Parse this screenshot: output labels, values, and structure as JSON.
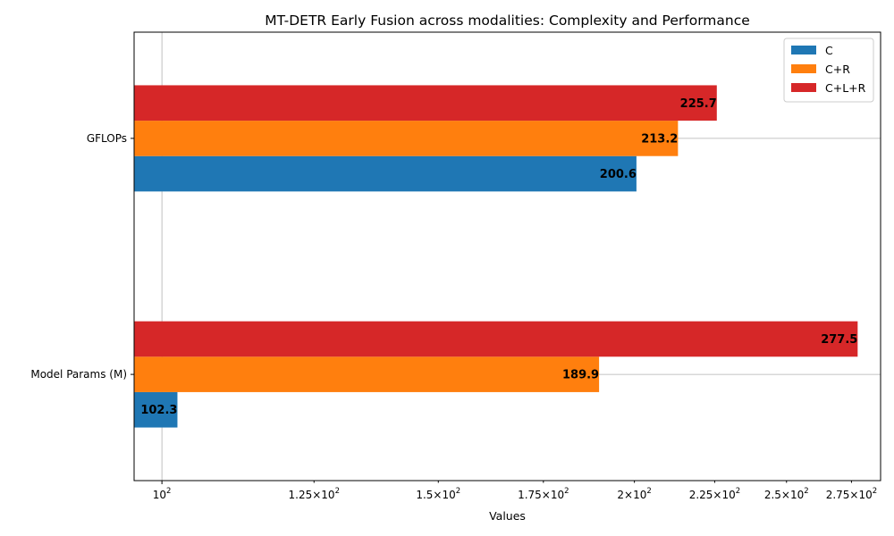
{
  "chart_data": {
    "type": "bar",
    "orientation": "horizontal",
    "title": "MT-DETR Early Fusion across modalities: Complexity and Performance",
    "xlabel": "Values",
    "ylabel": "",
    "x_scale": "log",
    "xlim": [
      96,
      287
    ],
    "x_ticks": [
      {
        "value": 100,
        "mantissa": "",
        "exponent": "2"
      },
      {
        "value": 125,
        "mantissa": "1.25",
        "exponent": "2"
      },
      {
        "value": 150,
        "mantissa": "1.5",
        "exponent": "2"
      },
      {
        "value": 175,
        "mantissa": "1.75",
        "exponent": "2"
      },
      {
        "value": 200,
        "mantissa": "2",
        "exponent": "2"
      },
      {
        "value": 225,
        "mantissa": "2.25",
        "exponent": "2"
      },
      {
        "value": 250,
        "mantissa": "2.5",
        "exponent": "2"
      },
      {
        "value": 275,
        "mantissa": "2.75",
        "exponent": "2"
      }
    ],
    "categories": [
      "GFLOPs",
      "Model Params (M)"
    ],
    "series": [
      {
        "name": "C",
        "color": "#1f77b4",
        "values": [
          200.6,
          102.3
        ]
      },
      {
        "name": "C+R",
        "color": "#ff7f0e",
        "values": [
          213.2,
          189.9
        ]
      },
      {
        "name": "C+L+R",
        "color": "#d62728",
        "values": [
          225.7,
          277.5
        ]
      }
    ],
    "grid": true,
    "legend_position": "top-right"
  }
}
